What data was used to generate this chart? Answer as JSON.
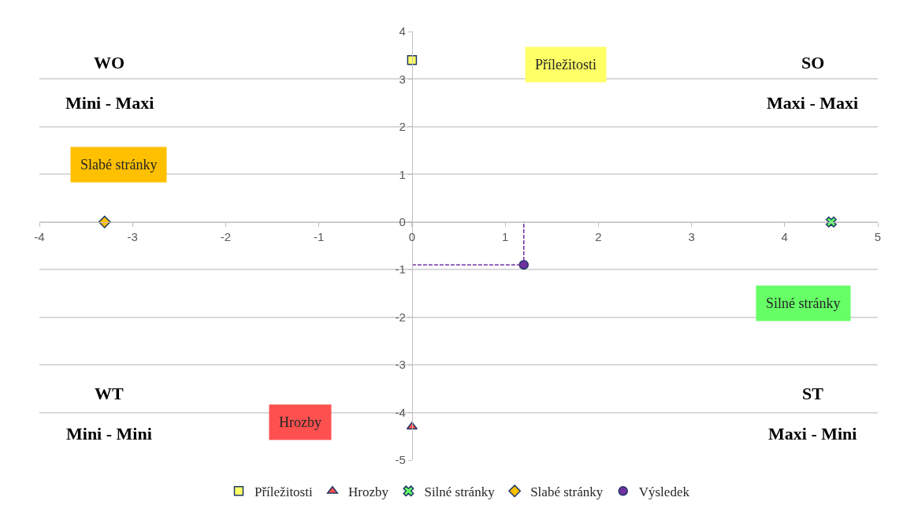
{
  "chart_data": {
    "type": "scatter",
    "series": [
      {
        "name": "Příležitosti",
        "color": "#ffff66",
        "marker": "square",
        "x": [
          0
        ],
        "values": [
          3.4
        ]
      },
      {
        "name": "Hrozby",
        "color": "#ff5050",
        "marker": "triangle",
        "x": [
          0
        ],
        "values": [
          -4.3
        ]
      },
      {
        "name": "Silné stránky",
        "color": "#66ff66",
        "marker": "cross",
        "x": [
          4.5
        ],
        "values": [
          0
        ]
      },
      {
        "name": "Slabé stránky",
        "color": "#ffc000",
        "marker": "diamond",
        "x": [
          -3.3
        ],
        "values": [
          0
        ]
      },
      {
        "name": "Výsledek",
        "color": "#7030a0",
        "marker": "circle",
        "x": [
          1.2
        ],
        "values": [
          -0.9
        ]
      },
      {
        "type": "line",
        "color": "#7030a0",
        "line_style": "dashed",
        "marker": "none",
        "x": [
          0,
          1.2,
          1.2
        ],
        "values": [
          -0.9,
          -0.9,
          0
        ]
      }
    ],
    "xlim": [
      -4,
      5
    ],
    "xticks": [
      -4,
      -3,
      -2,
      -1,
      0,
      1,
      2,
      3,
      4,
      5
    ],
    "ylim": [
      -5,
      4
    ],
    "yticks": [
      -5,
      -4,
      -3,
      -2,
      -1,
      0,
      1,
      2,
      3,
      4
    ],
    "grid": "y",
    "legend": "bottom",
    "annotations": [
      "WO",
      "Mini - Maxi",
      "SO",
      "Maxi - Maxi",
      "WT",
      "Mini - Mini",
      "ST",
      "Maxi - Mini",
      "Příležitosti",
      "Slabé stránky",
      "Silné stránky",
      "Hrozby"
    ]
  }
}
